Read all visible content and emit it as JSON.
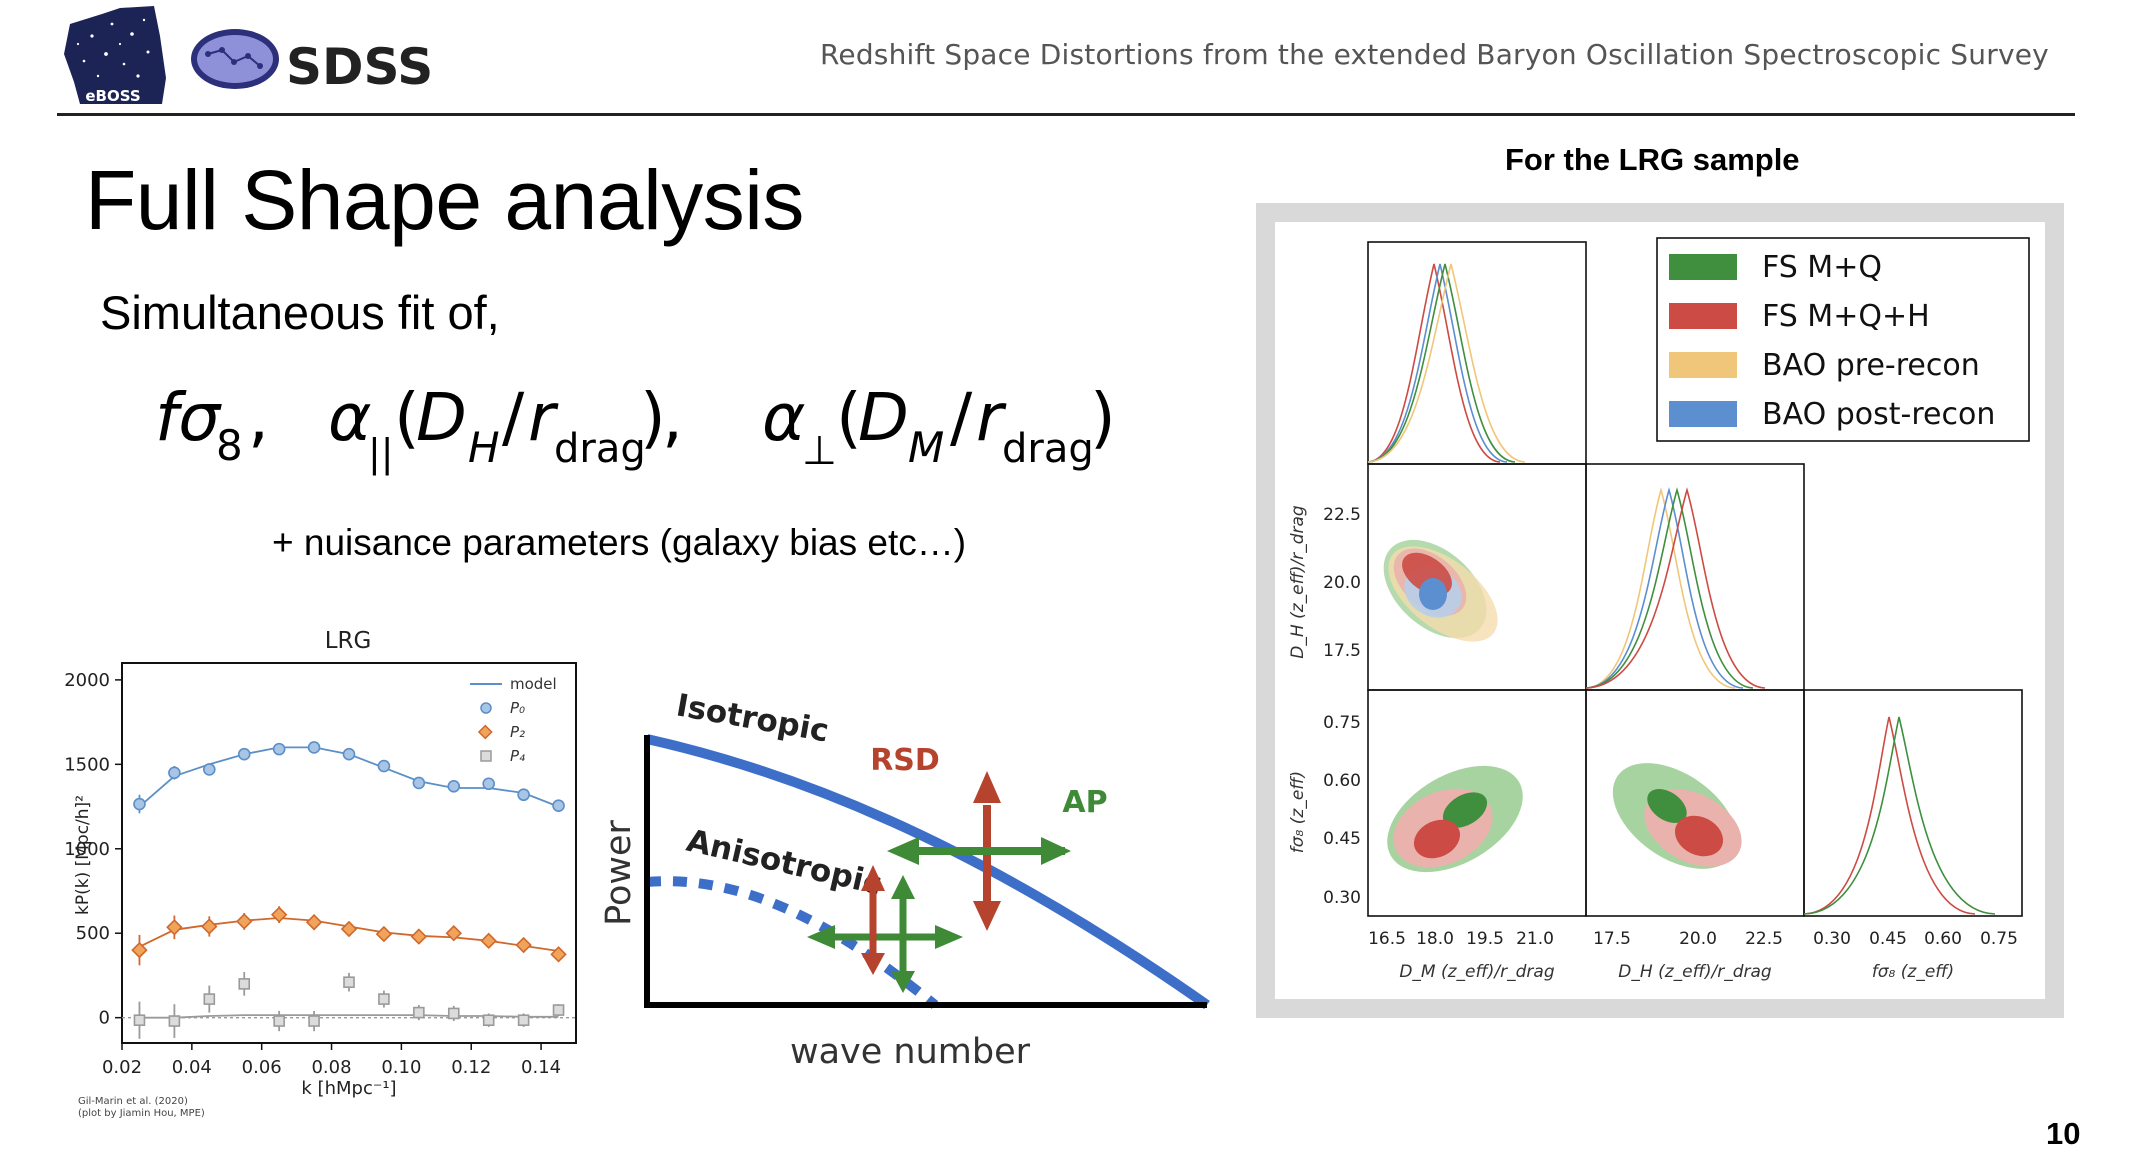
{
  "header": {
    "logo_eboss_text": "eBOSS",
    "logo_sdss_text": "SDSS",
    "subtitle": "Redshift Space Distortions from the extended Baryon Oscillation Spectroscopic Survey"
  },
  "slide": {
    "title": "Full Shape analysis",
    "intro": "Simultaneous fit of,",
    "nuisance": "+ nuisance parameters (galaxy bias etc…)",
    "page_number": "10"
  },
  "formula": {
    "t1_f": "fσ",
    "t1_sub": "8",
    "comma": ",",
    "alpha": "α",
    "par_sub": "||",
    "perp_sub": "⊥",
    "open": "(",
    "D": "D",
    "H_sub": "H",
    "M_sub": "M",
    "slash": "/",
    "r": "r",
    "drag_sub": "drag",
    "close": ")"
  },
  "pk_plot": {
    "title": "LRG",
    "legend": [
      "model",
      "P₀",
      "P₂",
      "P₄"
    ],
    "ylabel": "kP(k) [Mpc/h]²",
    "xlabel": "k [hMpc⁻¹]",
    "xticks": [
      "0.02",
      "0.04",
      "0.06",
      "0.08",
      "0.10",
      "0.12",
      "0.14"
    ],
    "yticks": [
      "0",
      "500",
      "1000",
      "1500",
      "2000"
    ],
    "credit_line1": "Gil-Marin et al. (2020)",
    "credit_line2": "(plot by Jiamin Hou, MPE)"
  },
  "schematic": {
    "isotropic": "Isotropic",
    "anisotropic": "Anisotropic",
    "rsd": "RSD",
    "ap": "AP",
    "ylabel": "Power",
    "xlabel": "wave number"
  },
  "triangle": {
    "heading": "For the LRG sample",
    "legend": [
      "FS M+Q",
      "FS M+Q+H",
      "BAO pre-recon",
      "BAO post-recon"
    ],
    "x_ticks_dm": [
      "16.5",
      "18.0",
      "19.5",
      "21.0"
    ],
    "x_ticks_dh": [
      "17.5",
      "20.0",
      "22.5"
    ],
    "x_ticks_fs": [
      "0.30",
      "0.45",
      "0.60",
      "0.75"
    ],
    "y_ticks_dh": [
      "22.5",
      "20.0",
      "17.5"
    ],
    "y_ticks_fs": [
      "0.75",
      "0.60",
      "0.45",
      "0.30"
    ],
    "label_dm": "D_M (z_eff)/r_drag",
    "label_dh": "D_H (z_eff)/r_drag",
    "label_fs": "fσ₈ (z_eff)"
  },
  "chart_data": {
    "type": "scatter",
    "title": "LRG",
    "xlabel": "k [hMpc⁻¹]",
    "ylabel": "kP(k) [Mpc/h]²",
    "xlim": [
      0.02,
      0.15
    ],
    "ylim": [
      -150,
      2100
    ],
    "x": [
      0.025,
      0.035,
      0.045,
      0.055,
      0.065,
      0.075,
      0.085,
      0.095,
      0.105,
      0.115,
      0.125,
      0.135,
      0.145
    ],
    "series": [
      {
        "name": "P₀",
        "color": "#5b8fc8",
        "values": [
          1265,
          1450,
          1470,
          1560,
          1590,
          1600,
          1560,
          1490,
          1390,
          1370,
          1385,
          1320,
          1255
        ],
        "errors": [
          55,
          40,
          35,
          30,
          25,
          25,
          25,
          25,
          20,
          20,
          20,
          20,
          20
        ]
      },
      {
        "name": "P₂",
        "color": "#d0682e",
        "values": [
          400,
          535,
          540,
          570,
          610,
          565,
          525,
          495,
          480,
          500,
          455,
          430,
          375
        ],
        "errors": [
          90,
          70,
          60,
          50,
          50,
          45,
          40,
          35,
          35,
          30,
          30,
          30,
          25
        ]
      },
      {
        "name": "P₄",
        "color": "#9a9a9a",
        "values": [
          -15,
          -20,
          110,
          200,
          -20,
          -20,
          210,
          110,
          30,
          25,
          -15,
          -15,
          45
        ],
        "errors": [
          110,
          100,
          80,
          70,
          60,
          60,
          55,
          50,
          45,
          45,
          40,
          40,
          35
        ]
      },
      {
        "name": "model P₀",
        "color": "#5b8fc8",
        "values": [
          1250,
          1430,
          1500,
          1560,
          1600,
          1600,
          1560,
          1480,
          1400,
          1360,
          1360,
          1330,
          1250
        ]
      },
      {
        "name": "model P₂",
        "color": "#d0682e",
        "values": [
          420,
          520,
          550,
          575,
          590,
          575,
          540,
          505,
          485,
          475,
          455,
          425,
          395
        ]
      },
      {
        "name": "model P₄",
        "color": "#9a9a9a",
        "values": [
          0,
          0,
          10,
          15,
          15,
          15,
          15,
          15,
          15,
          10,
          10,
          5,
          5
        ]
      }
    ]
  },
  "colors": {
    "fs_mq": "#3f8f3f",
    "fs_mqh": "#cc4b44",
    "bao_pre": "#f0c67a",
    "bao_post": "#5b8fd0",
    "schematic_blue": "#3d6fc9",
    "arrow_red": "#b5432d",
    "arrow_green": "#3f8a36"
  }
}
